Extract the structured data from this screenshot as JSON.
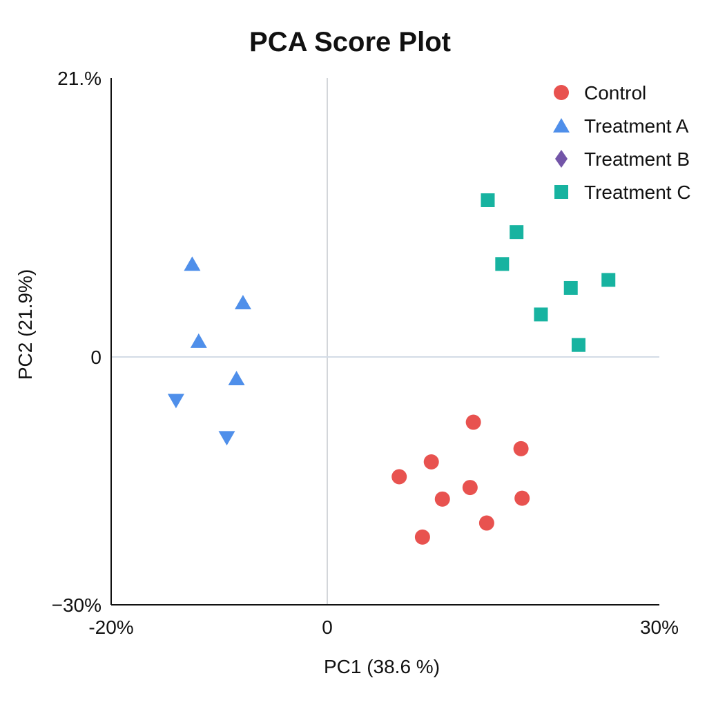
{
  "chart_data": {
    "type": "scatter",
    "title": "PCA Score Plot",
    "xlabel": "PC1 (38.6 %)",
    "ylabel": "PC2 (21.9%)",
    "xlim": [
      -20,
      30
    ],
    "ylim": [
      -30,
      21
    ],
    "x_ticks": [
      {
        "value": -20,
        "label": "-20%"
      },
      {
        "value": 0,
        "label": "0"
      },
      {
        "value": 30,
        "label": "30%"
      }
    ],
    "y_ticks": [
      {
        "value": 21,
        "label": "21.%"
      },
      {
        "value": 0,
        "label": "0"
      },
      {
        "value": -30,
        "label": "−30%"
      }
    ],
    "zero_lines": true,
    "grid": false,
    "legend_position": "top-right",
    "series": [
      {
        "name": "Control",
        "marker": "circle",
        "color": "#e8524f",
        "points": [
          {
            "x": 13.2,
            "y": -7.9
          },
          {
            "x": 17.5,
            "y": -11.1
          },
          {
            "x": 9.4,
            "y": -12.7
          },
          {
            "x": 6.5,
            "y": -14.5
          },
          {
            "x": 12.9,
            "y": -15.8
          },
          {
            "x": 10.4,
            "y": -17.2
          },
          {
            "x": 17.6,
            "y": -17.1
          },
          {
            "x": 14.4,
            "y": -20.1
          },
          {
            "x": 8.6,
            "y": -21.8
          }
        ]
      },
      {
        "name": "Treatment A",
        "marker": "triangle-up",
        "color": "#4f8fea",
        "points": [
          {
            "x": -12.5,
            "y": 7.0
          },
          {
            "x": -7.8,
            "y": 4.1
          },
          {
            "x": -11.9,
            "y": 1.2
          },
          {
            "x": -8.4,
            "y": -2.6
          },
          {
            "x": -14.0,
            "y": -5.3,
            "marker": "triangle-down"
          },
          {
            "x": -9.3,
            "y": -9.8,
            "marker": "triangle-down"
          }
        ]
      },
      {
        "name": "Treatment B",
        "marker": "diamond",
        "color": "#7355a8",
        "points": []
      },
      {
        "name": "Treatment C",
        "marker": "square",
        "color": "#17b3a0",
        "points": [
          {
            "x": 14.5,
            "y": 11.8
          },
          {
            "x": 17.1,
            "y": 9.4
          },
          {
            "x": 15.8,
            "y": 7.0
          },
          {
            "x": 22.0,
            "y": 5.2
          },
          {
            "x": 25.4,
            "y": 5.8
          },
          {
            "x": 19.3,
            "y": 3.2
          },
          {
            "x": 22.7,
            "y": 0.9
          }
        ]
      }
    ]
  }
}
